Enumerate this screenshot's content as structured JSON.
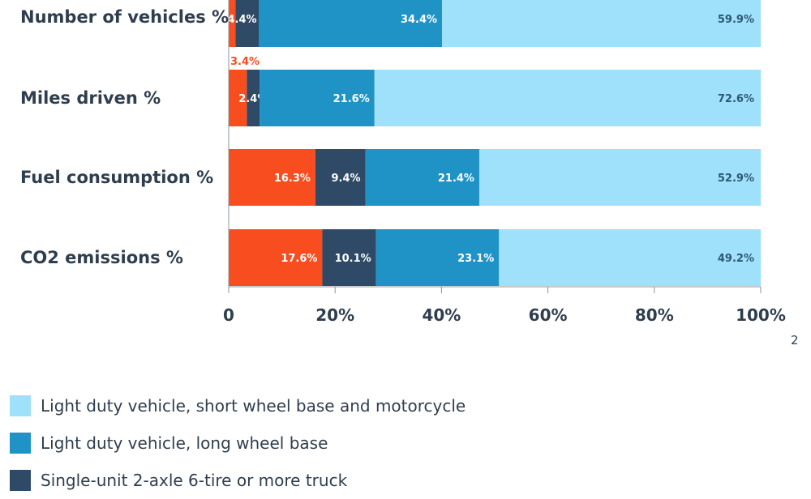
{
  "page_number": "2",
  "chart_data": {
    "type": "bar",
    "orientation": "horizontal",
    "stacked": true,
    "categories": [
      "Number of vehicles %",
      "Miles driven %",
      "Fuel consumption %",
      "CO2 emissions %"
    ],
    "series": [
      {
        "name": "",
        "color": "#f74d1f",
        "values": [
          1.3,
          3.4,
          16.3,
          17.6
        ],
        "labels": [
          "",
          "3.4%",
          "16.3%",
          "17.6%"
        ]
      },
      {
        "name": "Single-unit 2-axle 6-tire or more truck",
        "color": "#2e4a66",
        "values": [
          4.4,
          2.4,
          9.4,
          10.1
        ],
        "labels": [
          "4.4%",
          "2.4%",
          "9.4%",
          "10.1%"
        ]
      },
      {
        "name": "Light duty vehicle, long wheel base",
        "color": "#1f93c6",
        "values": [
          34.4,
          21.6,
          21.4,
          23.1
        ],
        "labels": [
          "34.4%",
          "21.6%",
          "21.4%",
          "23.1%"
        ]
      },
      {
        "name": "Light duty vehicle, short wheel base and motorcycle",
        "color": "#9fe0fa",
        "values": [
          59.9,
          72.6,
          52.9,
          49.2
        ],
        "labels": [
          "59.9%",
          "72.6%",
          "52.9%",
          "49.2%"
        ]
      }
    ],
    "xlim": [
      0,
      100
    ],
    "xticks": [
      0,
      20,
      40,
      60,
      80,
      100
    ],
    "xtick_labels": [
      "0",
      "20%",
      "40%",
      "60%",
      "80%",
      "100%"
    ],
    "legend_placement": "bottom-left",
    "grid": false
  }
}
